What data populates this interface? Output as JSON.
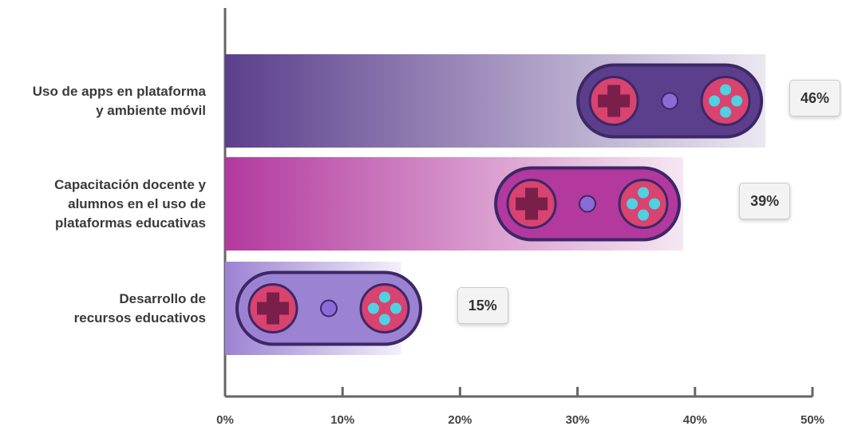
{
  "chart_data": {
    "type": "bar",
    "orientation": "horizontal",
    "categories": [
      "Uso de apps en plataforma\ny ambiente móvil",
      "Capacitación docente y\nalumnos en el uso de\nplataformas educativas",
      "Desarrollo de\nrecursos educativos"
    ],
    "values": [
      46,
      39,
      15
    ],
    "value_labels": [
      "46%",
      "39%",
      "15%"
    ],
    "colors": [
      "#5b3f8c",
      "#b3399e",
      "#9c82d2"
    ],
    "xlim": [
      0,
      50
    ],
    "xticks": [
      {
        "value": 0,
        "label": "0%"
      },
      {
        "value": 10,
        "label": "10%"
      },
      {
        "value": 20,
        "label": "20%"
      },
      {
        "value": 30,
        "label": "30%"
      },
      {
        "value": 40,
        "label": "40%"
      },
      {
        "value": 50,
        "label": "50%"
      }
    ]
  }
}
